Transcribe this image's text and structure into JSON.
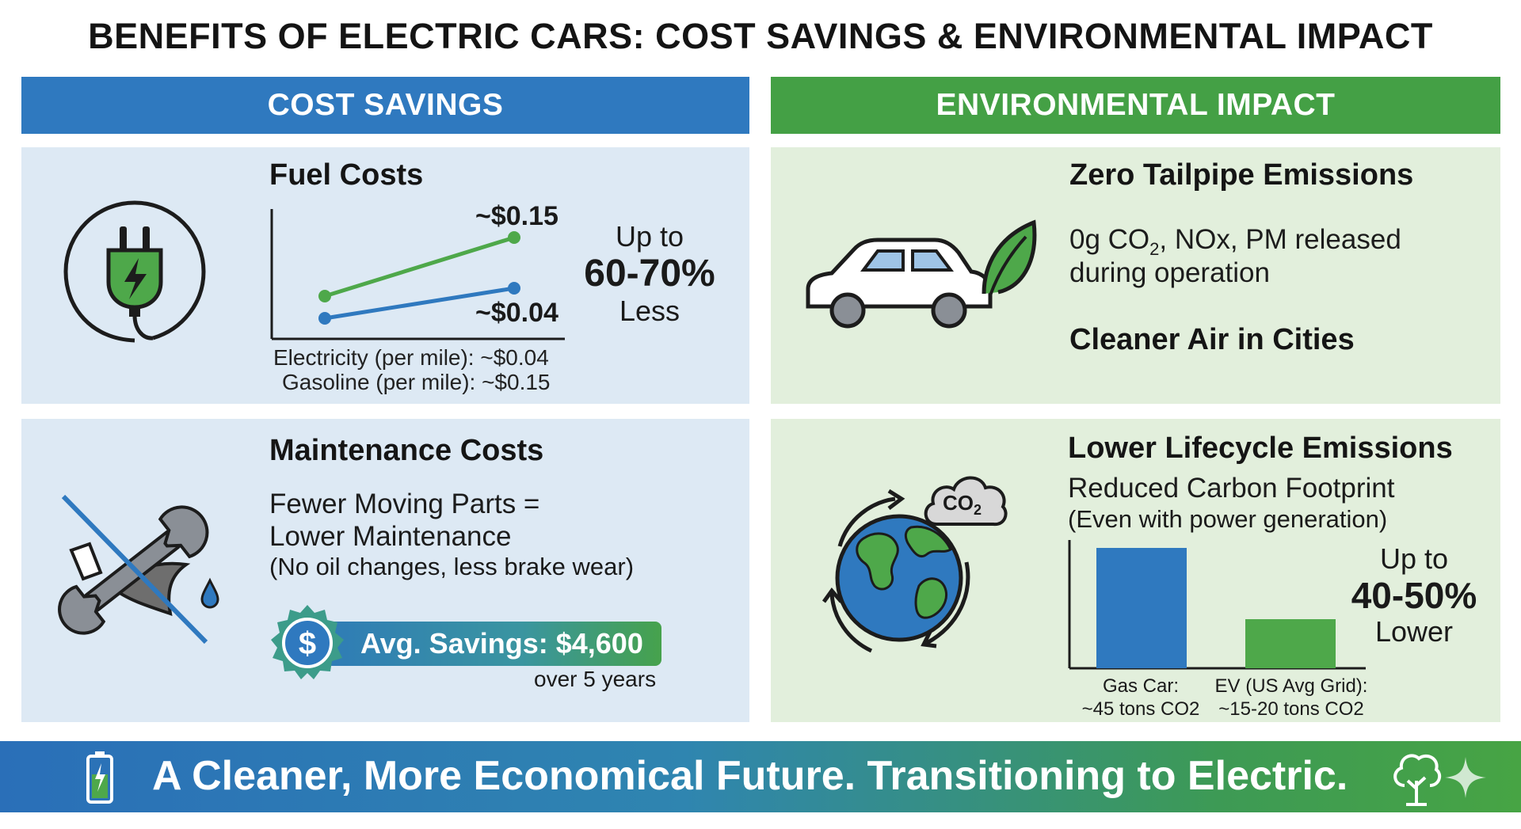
{
  "title": "BENEFITS OF ELECTRIC CARS: COST SAVINGS & ENVIRONMENTAL IMPACT",
  "sections": {
    "cost": "COST SAVINGS",
    "environment": "ENVIRONMENTAL IMPACT"
  },
  "fuel": {
    "heading": "Fuel Costs",
    "label_gas_value": "~$0.15",
    "label_elec_value": "~$0.04",
    "legend_electricity": "Electricity (per mile): ~$0.04",
    "legend_gasoline": "Gasoline (per mile): ~$0.15",
    "saving_prefix": "Up to",
    "saving_value": "60-70%",
    "saving_suffix": "Less",
    "colors": {
      "gasoline": "#4ea84a",
      "electricity": "#2f79bf"
    }
  },
  "maintenance": {
    "heading": "Maintenance Costs",
    "line1": "Fewer Moving Parts =",
    "line2": "Lower Maintenance",
    "note": "(No oil changes, less brake wear)",
    "savings_label": "Avg. Savings: $4,600",
    "savings_period": "over 5 years",
    "icons": [
      "wrench-crossed-icon",
      "dollar-badge-icon"
    ]
  },
  "emissions": {
    "heading": "Zero Tailpipe Emissions",
    "line1_prefix": "0g CO",
    "line1_sub": "2",
    "line1_suffix": ", NOx, PM released",
    "line2": "during operation",
    "subheading": "Cleaner Air in Cities",
    "icons": [
      "car-leaf-icon"
    ]
  },
  "lifecycle": {
    "heading": "Lower Lifecycle Emissions",
    "subheading": "Reduced Carbon Footprint",
    "note": "(Even with power generation)",
    "cloud_label_main": "CO",
    "cloud_label_sub": "2",
    "reduction_prefix": "Up to",
    "reduction_value": "40-50%",
    "reduction_suffix": "Lower",
    "bar_gas_line1": "Gas Car:",
    "bar_gas_line2": "~45 tons CO2",
    "bar_ev_line1": "EV (US Avg Grid):",
    "bar_ev_line2": "~15-20 tons CO2",
    "colors": {
      "gas": "#2f79bf",
      "ev": "#4ea84a"
    },
    "icons": [
      "globe-recycle-icon",
      "co2-cloud-icon"
    ]
  },
  "footer": {
    "text": "A Cleaner, More Economical Future. Transitioning to Electric.",
    "icons": [
      "battery-icon",
      "tree-icon",
      "sparkle-icon"
    ]
  }
}
